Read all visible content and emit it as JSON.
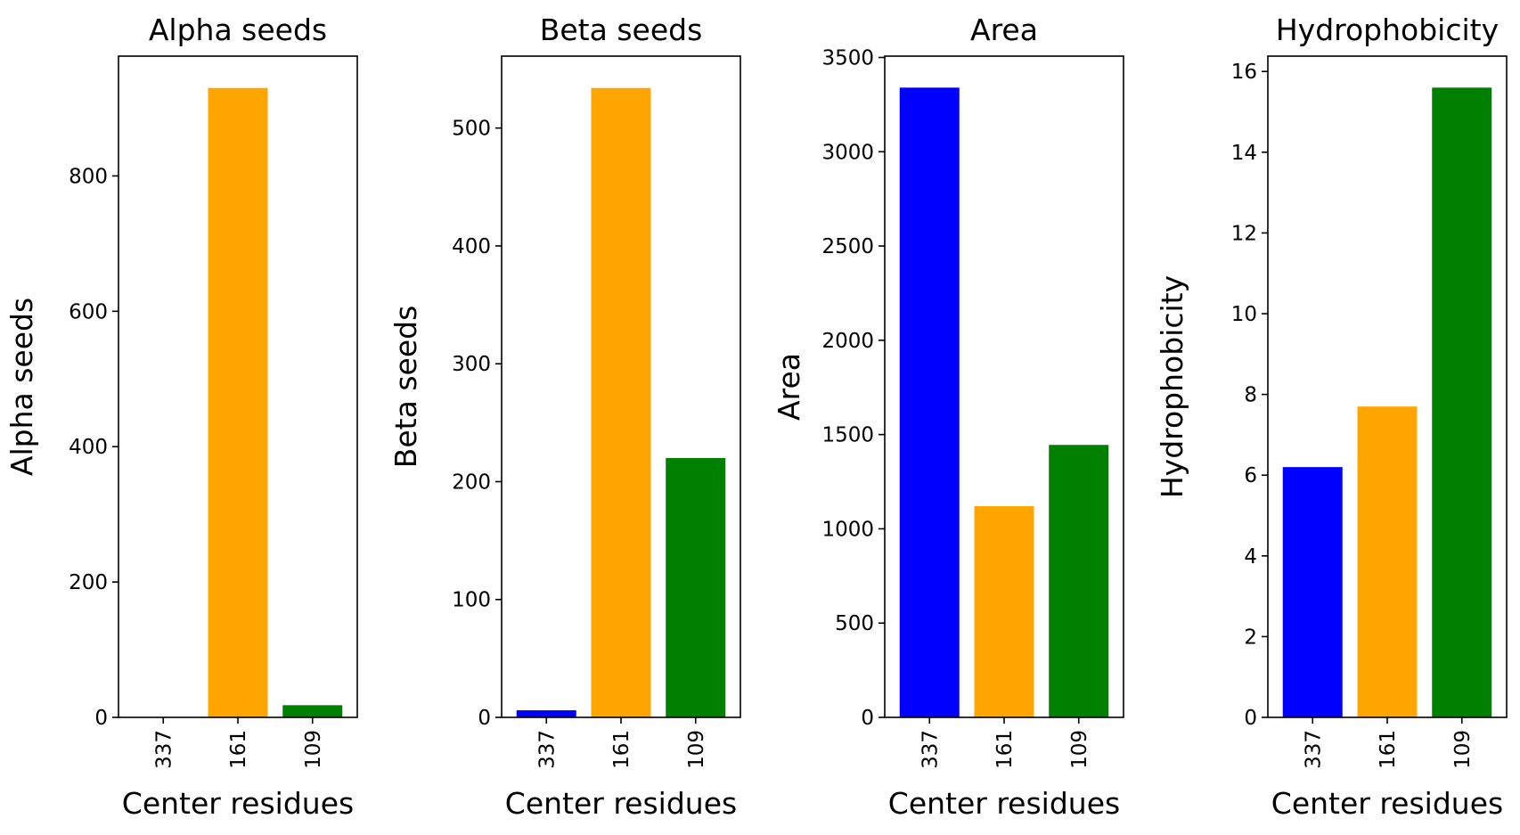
{
  "chart_data": [
    {
      "type": "bar",
      "title": "Alpha seeds",
      "xlabel": "Center residues",
      "ylabel": "Alpha seeds",
      "categories": [
        "337",
        "161",
        "109"
      ],
      "values": [
        0,
        930,
        18
      ],
      "colors": [
        "#0000ff",
        "#ffa500",
        "#008000"
      ],
      "ylim": [
        0,
        977
      ],
      "yticks": [
        0,
        200,
        400,
        600,
        800
      ],
      "xtick_rotation": 90
    },
    {
      "type": "bar",
      "title": "Beta seeds",
      "xlabel": "Center residues",
      "ylabel": "Beta seeds",
      "categories": [
        "337",
        "161",
        "109"
      ],
      "values": [
        6,
        534,
        220
      ],
      "colors": [
        "#0000ff",
        "#ffa500",
        "#008000"
      ],
      "ylim": [
        0,
        561
      ],
      "yticks": [
        0,
        100,
        200,
        300,
        400,
        500
      ],
      "xtick_rotation": 90
    },
    {
      "type": "bar",
      "title": "Area",
      "xlabel": "Center residues",
      "ylabel": "Area",
      "categories": [
        "337",
        "161",
        "109"
      ],
      "values": [
        3340,
        1120,
        1445
      ],
      "colors": [
        "#0000ff",
        "#ffa500",
        "#008000"
      ],
      "ylim": [
        0,
        3507
      ],
      "yticks": [
        0,
        500,
        1000,
        1500,
        2000,
        2500,
        3000,
        3500
      ],
      "xtick_rotation": 90
    },
    {
      "type": "bar",
      "title": "Hydrophobicity",
      "xlabel": "Center residues",
      "ylabel": "Hydrophobicity",
      "categories": [
        "337",
        "161",
        "109"
      ],
      "values": [
        6.2,
        7.7,
        15.6
      ],
      "colors": [
        "#0000ff",
        "#ffa500",
        "#008000"
      ],
      "ylim": [
        0,
        16.38
      ],
      "yticks": [
        0,
        2,
        4,
        6,
        8,
        10,
        12,
        14,
        16
      ],
      "xtick_rotation": 90
    }
  ]
}
